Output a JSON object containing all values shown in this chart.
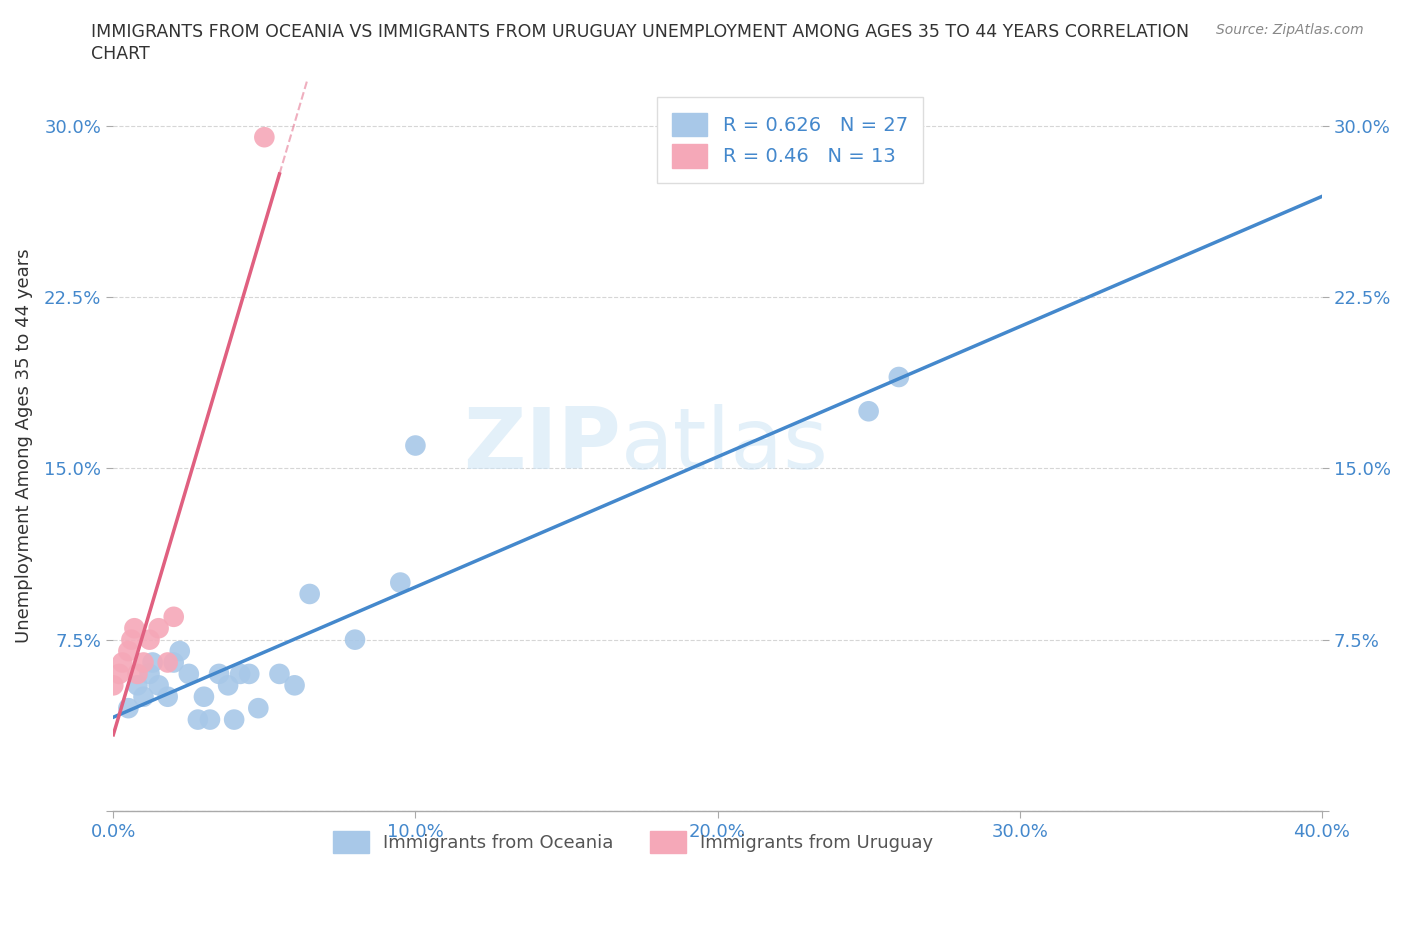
{
  "title_line1": "IMMIGRANTS FROM OCEANIA VS IMMIGRANTS FROM URUGUAY UNEMPLOYMENT AMONG AGES 35 TO 44 YEARS CORRELATION",
  "title_line2": "CHART",
  "source": "Source: ZipAtlas.com",
  "ylabel": "Unemployment Among Ages 35 to 44 years",
  "xlim": [
    0.0,
    0.4
  ],
  "ylim": [
    0.0,
    0.32
  ],
  "xticks": [
    0.0,
    0.1,
    0.2,
    0.3,
    0.4
  ],
  "yticks": [
    0.0,
    0.075,
    0.15,
    0.225,
    0.3
  ],
  "xticklabels": [
    "0.0%",
    "10.0%",
    "20.0%",
    "30.0%",
    "40.0%"
  ],
  "yticklabels": [
    "",
    "7.5%",
    "15.0%",
    "22.5%",
    "30.0%"
  ],
  "watermark_part1": "ZIP",
  "watermark_part2": "atlas",
  "oceania_R": 0.626,
  "oceania_N": 27,
  "uruguay_R": 0.46,
  "uruguay_N": 13,
  "oceania_color": "#a8c8e8",
  "uruguay_color": "#f5a8b8",
  "oceania_line_color": "#4488cc",
  "uruguay_line_color": "#e06080",
  "oceania_points_x": [
    0.005,
    0.008,
    0.01,
    0.012,
    0.013,
    0.015,
    0.018,
    0.02,
    0.022,
    0.025,
    0.028,
    0.03,
    0.032,
    0.035,
    0.038,
    0.04,
    0.042,
    0.045,
    0.048,
    0.055,
    0.06,
    0.065,
    0.08,
    0.095,
    0.1,
    0.25,
    0.26
  ],
  "oceania_points_y": [
    0.045,
    0.055,
    0.05,
    0.06,
    0.065,
    0.055,
    0.05,
    0.065,
    0.07,
    0.06,
    0.04,
    0.05,
    0.04,
    0.06,
    0.055,
    0.04,
    0.06,
    0.06,
    0.045,
    0.06,
    0.055,
    0.095,
    0.075,
    0.1,
    0.16,
    0.175,
    0.19
  ],
  "uruguay_points_x": [
    0.0,
    0.002,
    0.003,
    0.005,
    0.006,
    0.007,
    0.008,
    0.01,
    0.012,
    0.015,
    0.018,
    0.02,
    0.05
  ],
  "uruguay_points_y": [
    0.055,
    0.06,
    0.065,
    0.07,
    0.075,
    0.08,
    0.06,
    0.065,
    0.075,
    0.08,
    0.065,
    0.085,
    0.295
  ],
  "legend_oceania": "Immigrants from Oceania",
  "legend_uruguay": "Immigrants from Uruguay",
  "tick_color": "#4488cc",
  "label_color": "#333333",
  "grid_color": "#cccccc"
}
